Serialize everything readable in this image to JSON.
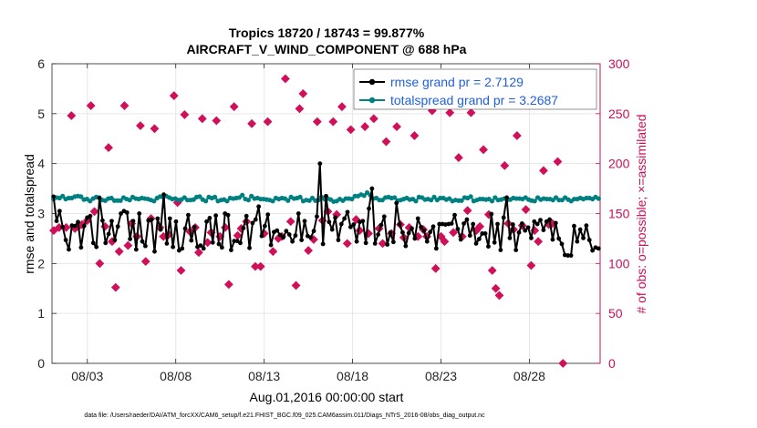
{
  "chart_data": {
    "type": "line",
    "title_line1": "Tropics 18720 / 18743 = 99.877%",
    "title_line2": "AIRCRAFT_V_WIND_COMPONENT @ 688 hPa",
    "ylabel_left": "rmse and totalspread",
    "ylabel_right": "# of obs: o=possible; ×=assimilated",
    "xlabel": "Aug.01,2016 00:00:00 start",
    "footer": "data file: /Users/raeder/DAI/ATM_forcXX/CAM6_setup/f.e21.FHIST_BGC.f09_025.CAM6assim.011/Diags_NTrS_2016-08/obs_diag_output.nc",
    "x_ticks": [
      "08/03",
      "08/08",
      "08/13",
      "08/18",
      "08/23",
      "08/28"
    ],
    "x_tick_days": [
      2,
      7,
      12,
      17,
      22,
      27
    ],
    "xlim_days": [
      0,
      31
    ],
    "ylim_left": [
      0,
      6
    ],
    "y_ticks_left": [
      "0",
      "1",
      "2",
      "3",
      "4",
      "5",
      "6"
    ],
    "ylim_right": [
      0,
      300
    ],
    "y_ticks_right": [
      "0",
      "50",
      "100",
      "150",
      "200",
      "250",
      "300"
    ],
    "grid": true,
    "legend_position": "top-right",
    "colors": {
      "rmse": "#000000",
      "spread": "#008080",
      "obs": "#d0105a",
      "right_axis": "#c8105a",
      "legend_text": "#1f5fe0"
    },
    "series": [
      {
        "name": "rmse grand pr = 2.7129",
        "key": "rmse",
        "values": [
          3.34,
          2.85,
          3.05,
          2.73,
          2.47,
          2.28,
          2.76,
          2.75,
          2.83,
          2.32,
          2.75,
          2.92,
          2.95,
          2.41,
          2.33,
          3.31,
          2.86,
          2.41,
          2.59,
          2.85,
          2.47,
          2.74,
          3.0,
          3.05,
          3.02,
          2.49,
          2.85,
          2.28,
          3.0,
          2.44,
          2.35,
          2.86,
          2.88,
          2.24,
          2.9,
          2.68,
          3.38,
          2.4,
          2.9,
          2.33,
          2.84,
          2.26,
          2.3,
          2.7,
          2.97,
          2.46,
          2.73,
          2.33,
          2.36,
          2.3,
          2.84,
          2.91,
          2.42,
          2.96,
          2.39,
          2.32,
          3.0,
          2.97,
          2.27,
          2.45,
          2.45,
          2.41,
          2.71,
          2.95,
          2.31,
          2.81,
          2.88,
          3.14,
          2.55,
          2.75,
          2.98,
          2.37,
          2.63,
          2.66,
          2.57,
          2.52,
          2.65,
          2.58,
          2.44,
          2.56,
          3.0,
          2.47,
          2.85,
          2.55,
          2.52,
          2.65,
          2.94,
          4.0,
          2.39,
          3.35,
          2.83,
          2.68,
          2.92,
          2.47,
          2.79,
          2.9,
          3.03,
          2.73,
          2.78,
          2.44,
          2.83,
          2.85,
          2.41,
          3.1,
          3.5,
          2.4,
          2.58,
          2.77,
          2.94,
          2.38,
          2.62,
          2.43,
          3.21,
          2.79,
          2.62,
          2.35,
          2.61,
          2.7,
          2.5,
          2.9,
          2.73,
          2.66,
          2.44,
          2.63,
          2.74,
          2.3,
          2.79,
          2.79,
          2.78,
          2.79,
          2.8,
          2.97,
          2.69,
          2.48,
          2.8,
          2.88,
          2.56,
          2.79,
          2.4,
          2.49,
          2.6,
          2.6,
          2.34,
          2.99,
          2.42,
          2.79,
          2.27,
          2.92,
          3.32,
          2.51,
          2.78,
          2.27,
          2.62,
          2.8,
          2.66,
          2.72,
          2.51,
          2.84,
          2.79,
          2.87,
          2.67,
          2.84,
          2.88,
          2.48,
          2.81,
          2.5,
          2.39,
          2.17,
          2.16,
          2.16,
          2.75,
          2.44,
          2.68,
          2.51,
          2.76,
          2.47,
          2.26,
          2.32,
          2.3
        ]
      },
      {
        "name": "totalspread grand pr = 3.2687",
        "key": "spread",
        "values": [
          3.29,
          3.32,
          3.31,
          3.35,
          3.29,
          3.31,
          3.31,
          3.34,
          3.35,
          3.34,
          3.28,
          3.29,
          3.25,
          3.3,
          3.33,
          3.32,
          3.27,
          3.26,
          3.3,
          3.31,
          3.26,
          3.26,
          3.26,
          3.32,
          3.29,
          3.27,
          3.33,
          3.3,
          3.29,
          3.31,
          3.3,
          3.29,
          3.27,
          3.25,
          3.31,
          3.34,
          3.33,
          3.35,
          3.32,
          3.29,
          3.3,
          3.27,
          3.28,
          3.32,
          3.27,
          3.27,
          3.28,
          3.33,
          3.34,
          3.28,
          3.25,
          3.33,
          3.31,
          3.33,
          3.25,
          3.27,
          3.28,
          3.25,
          3.31,
          3.3,
          3.31,
          3.32,
          3.37,
          3.29,
          3.27,
          3.35,
          3.3,
          3.31,
          3.29,
          3.29,
          3.28,
          3.27,
          3.25,
          3.31,
          3.29,
          3.31,
          3.3,
          3.26,
          3.33,
          3.3,
          3.31,
          3.33,
          3.25,
          3.27,
          3.26,
          3.31,
          3.26,
          3.27,
          3.33,
          3.29,
          3.3,
          3.28,
          3.24,
          3.25,
          3.29,
          3.26,
          3.3,
          3.3,
          3.29,
          3.35,
          3.35,
          3.38,
          3.36,
          3.42,
          3.37,
          3.3,
          3.31,
          3.27,
          3.27,
          3.32,
          3.33,
          3.31,
          3.32,
          3.26,
          3.27,
          3.29,
          3.31,
          3.28,
          3.29,
          3.25,
          3.33,
          3.32,
          3.28,
          3.29,
          3.27,
          3.33,
          3.27,
          3.31,
          3.31,
          3.28,
          3.3,
          3.25,
          3.27,
          3.26,
          3.26,
          3.32,
          3.31,
          3.34,
          3.25,
          3.27,
          3.29,
          3.29,
          3.28,
          3.29,
          3.25,
          3.32,
          3.27,
          3.28,
          3.3,
          3.27,
          3.28,
          3.31,
          3.3,
          3.3,
          3.29,
          3.32,
          3.28,
          3.26,
          3.25,
          3.32,
          3.28,
          3.3,
          3.29,
          3.29,
          3.27,
          3.32,
          3.27,
          3.27,
          3.32,
          3.28,
          3.25,
          3.29,
          3.29,
          3.31,
          3.29,
          3.31,
          3.31,
          3.29,
          3.33,
          3.3
        ]
      },
      {
        "name": "# of obs",
        "key": "obs",
        "axis": "right",
        "points": [
          [
            0.1,
            133
          ],
          [
            0.4,
            136
          ],
          [
            0.8,
            136
          ],
          [
            1.1,
            248
          ],
          [
            1.3,
            135
          ],
          [
            1.5,
            137
          ],
          [
            1.7,
            139
          ],
          [
            2.0,
            143
          ],
          [
            2.2,
            258
          ],
          [
            2.4,
            152
          ],
          [
            2.7,
            100
          ],
          [
            3.0,
            137
          ],
          [
            3.2,
            216
          ],
          [
            3.4,
            122
          ],
          [
            3.6,
            76
          ],
          [
            3.8,
            112
          ],
          [
            4.1,
            258
          ],
          [
            4.3,
            118
          ],
          [
            4.5,
            140
          ],
          [
            4.8,
            127
          ],
          [
            5.0,
            238
          ],
          [
            5.3,
            102
          ],
          [
            5.6,
            145
          ],
          [
            5.8,
            235
          ],
          [
            6.1,
            136
          ],
          [
            6.3,
            127
          ],
          [
            6.6,
            129
          ],
          [
            6.9,
            268
          ],
          [
            7.1,
            161
          ],
          [
            7.3,
            93
          ],
          [
            7.5,
            249
          ],
          [
            7.8,
            132
          ],
          [
            8.1,
            136
          ],
          [
            8.3,
            111
          ],
          [
            8.5,
            245
          ],
          [
            8.8,
            121
          ],
          [
            9.0,
            131
          ],
          [
            9.3,
            243
          ],
          [
            9.5,
            127
          ],
          [
            9.8,
            136
          ],
          [
            10.0,
            79
          ],
          [
            10.3,
            257
          ],
          [
            10.5,
            128
          ],
          [
            10.7,
            135
          ],
          [
            11.0,
            142
          ],
          [
            11.3,
            240
          ],
          [
            11.5,
            97
          ],
          [
            11.8,
            97
          ],
          [
            12.0,
            130
          ],
          [
            12.2,
            242
          ],
          [
            12.5,
            112
          ],
          [
            12.8,
            125
          ],
          [
            13.0,
            127
          ],
          [
            13.2,
            285
          ],
          [
            13.5,
            142
          ],
          [
            13.8,
            78
          ],
          [
            14.0,
            255
          ],
          [
            14.2,
            270
          ],
          [
            14.5,
            113
          ],
          [
            14.8,
            124
          ],
          [
            15.0,
            242
          ],
          [
            15.3,
            143
          ],
          [
            15.6,
            152
          ],
          [
            15.9,
            242
          ],
          [
            16.1,
            149
          ],
          [
            16.4,
            257
          ],
          [
            16.7,
            120
          ],
          [
            16.9,
            234
          ],
          [
            17.2,
            144
          ],
          [
            17.4,
            133
          ],
          [
            17.7,
            237
          ],
          [
            17.9,
            130
          ],
          [
            18.2,
            245
          ],
          [
            18.5,
            135
          ],
          [
            18.7,
            120
          ],
          [
            18.9,
            222
          ],
          [
            19.2,
            130
          ],
          [
            19.5,
            237
          ],
          [
            19.7,
            139
          ],
          [
            19.9,
            126
          ],
          [
            20.2,
            136
          ],
          [
            20.5,
            228
          ],
          [
            20.7,
            127
          ],
          [
            21.0,
            134
          ],
          [
            21.2,
            127
          ],
          [
            21.5,
            253
          ],
          [
            21.7,
            95
          ],
          [
            22.0,
            127
          ],
          [
            22.2,
            122
          ],
          [
            22.5,
            251
          ],
          [
            22.7,
            131
          ],
          [
            23.0,
            206
          ],
          [
            23.2,
            127
          ],
          [
            23.5,
            153
          ],
          [
            23.7,
            251
          ],
          [
            24.0,
            133
          ],
          [
            24.2,
            137
          ],
          [
            24.4,
            214
          ],
          [
            24.7,
            149
          ],
          [
            24.9,
            93
          ],
          [
            25.1,
            75
          ],
          [
            25.3,
            68
          ],
          [
            25.6,
            198
          ],
          [
            25.8,
            140
          ],
          [
            26.1,
            134
          ],
          [
            26.3,
            228
          ],
          [
            26.6,
            138
          ],
          [
            26.8,
            154
          ],
          [
            27.1,
            98
          ],
          [
            27.3,
            133
          ],
          [
            27.5,
            122
          ],
          [
            27.8,
            193
          ],
          [
            28.1,
            139
          ],
          [
            28.3,
            140
          ],
          [
            28.6,
            202
          ],
          [
            28.9,
            0
          ]
        ]
      }
    ]
  }
}
